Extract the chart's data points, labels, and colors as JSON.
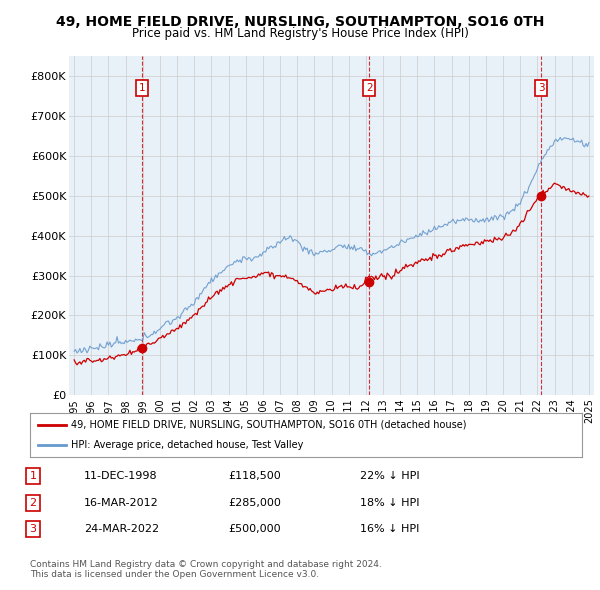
{
  "title_line1": "49, HOME FIELD DRIVE, NURSLING, SOUTHAMPTON, SO16 0TH",
  "title_line2": "Price paid vs. HM Land Registry's House Price Index (HPI)",
  "ylim": [
    0,
    850000
  ],
  "yticks": [
    0,
    100000,
    200000,
    300000,
    400000,
    500000,
    600000,
    700000,
    800000
  ],
  "ytick_labels": [
    "£0",
    "£100K",
    "£200K",
    "£300K",
    "£400K",
    "£500K",
    "£600K",
    "£700K",
    "£800K"
  ],
  "sale_year_nums": [
    1998.96,
    2012.21,
    2022.23
  ],
  "sale_prices": [
    118500,
    285000,
    500000
  ],
  "sale_labels": [
    "1",
    "2",
    "3"
  ],
  "sale_color": "#cc0000",
  "hpi_color": "#6699cc",
  "vline_color": "#cc0000",
  "chart_bg_color": "#e8f0f8",
  "legend_label_red": "49, HOME FIELD DRIVE, NURSLING, SOUTHAMPTON, SO16 0TH (detached house)",
  "legend_label_blue": "HPI: Average price, detached house, Test Valley",
  "table_rows": [
    [
      "1",
      "11-DEC-1998",
      "£118,500",
      "22% ↓ HPI"
    ],
    [
      "2",
      "16-MAR-2012",
      "£285,000",
      "18% ↓ HPI"
    ],
    [
      "3",
      "24-MAR-2022",
      "£500,000",
      "16% ↓ HPI"
    ]
  ],
  "footer": "Contains HM Land Registry data © Crown copyright and database right 2024.\nThis data is licensed under the Open Government Licence v3.0.",
  "background_color": "#ffffff",
  "grid_color": "#cccccc",
  "xlim_left": 1994.7,
  "xlim_right": 2025.3
}
